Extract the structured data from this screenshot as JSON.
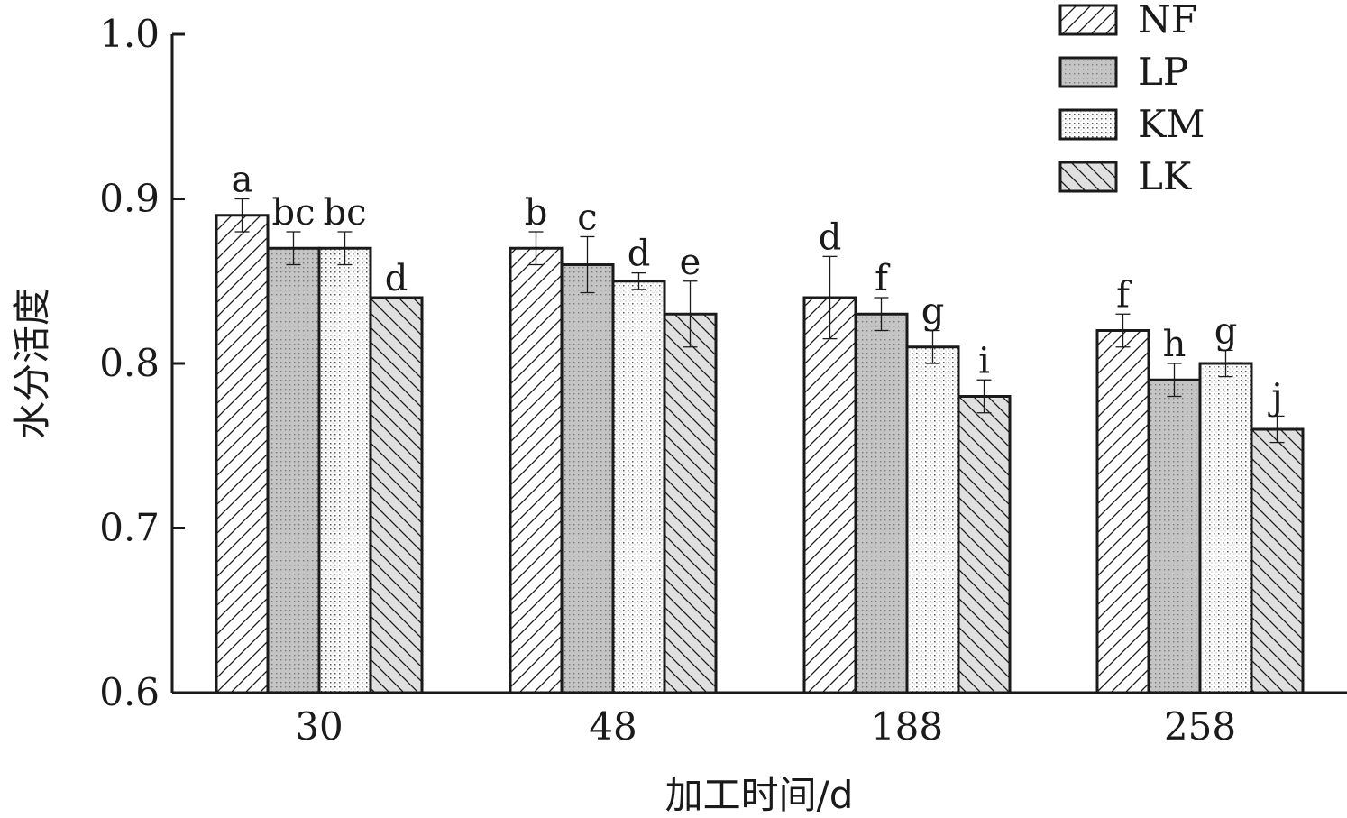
{
  "chart_data": {
    "type": "bar",
    "title": "",
    "xlabel": "加工时间/d",
    "ylabel": "水分活度",
    "categories": [
      "30",
      "48",
      "188",
      "258"
    ],
    "ylim": [
      0.6,
      1.0
    ],
    "yticks": [
      "0.6",
      "0.7",
      "0.8",
      "0.9",
      "1.0"
    ],
    "legend_position": "top-right",
    "series": [
      {
        "name": "NF",
        "pattern": "diagonal-up",
        "fill": "#ffffff",
        "values": [
          0.89,
          0.87,
          0.84,
          0.82
        ],
        "errors": [
          0.01,
          0.01,
          0.025,
          0.01
        ],
        "labels": [
          "a",
          "b",
          "d",
          "f"
        ]
      },
      {
        "name": "LP",
        "pattern": "dots-gray",
        "fill": "#c4c4c4",
        "values": [
          0.87,
          0.86,
          0.83,
          0.79
        ],
        "errors": [
          0.01,
          0.017,
          0.01,
          0.01
        ],
        "labels": [
          "bc",
          "c",
          "f",
          "h"
        ]
      },
      {
        "name": "KM",
        "pattern": "fine-dots",
        "fill": "#ffffff",
        "values": [
          0.87,
          0.85,
          0.81,
          0.8
        ],
        "errors": [
          0.01,
          0.005,
          0.01,
          0.008
        ],
        "labels": [
          "bc",
          "d",
          "g",
          "g"
        ]
      },
      {
        "name": "LK",
        "pattern": "diagonal-down-gray",
        "fill": "#e0e0e0",
        "values": [
          0.84,
          0.83,
          0.78,
          0.76
        ],
        "errors": [
          0.0,
          0.02,
          0.01,
          0.008
        ],
        "labels": [
          "d",
          "e",
          "i",
          "j"
        ]
      }
    ]
  }
}
